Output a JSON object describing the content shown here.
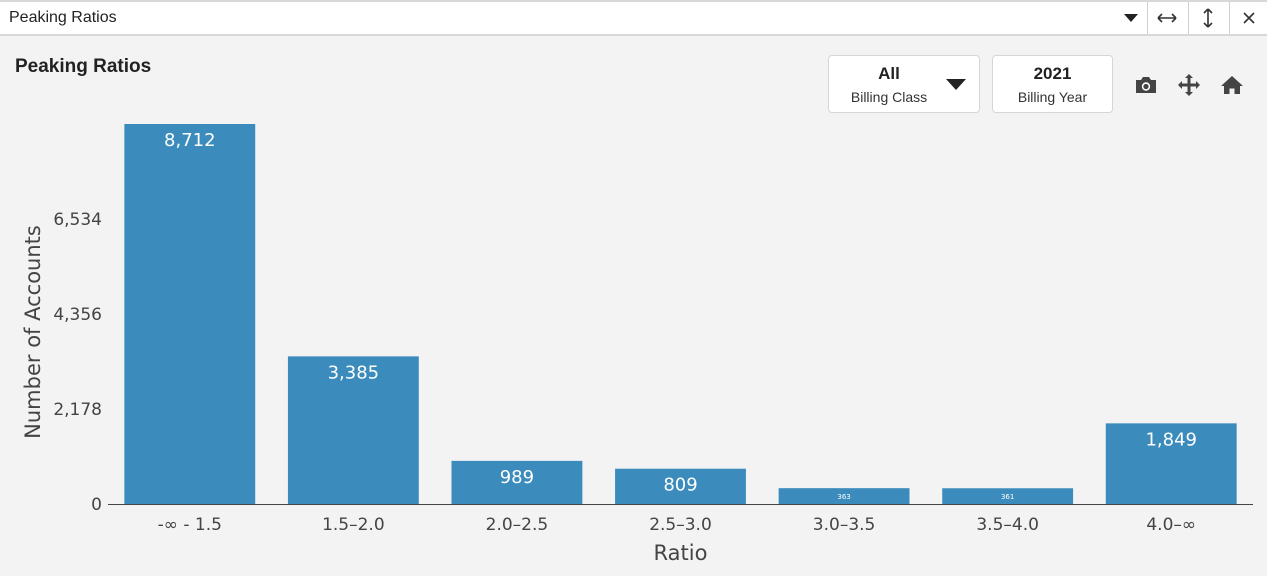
{
  "window": {
    "title": "Peaking Ratios"
  },
  "icons": {
    "dropdown": "caret-down-icon",
    "resize_horizontal": "arrows-horizontal-icon",
    "resize_vertical": "arrows-vertical-icon",
    "close": "close-icon",
    "camera": "camera-icon",
    "move": "move-icon",
    "home": "home-icon"
  },
  "filters": {
    "billing_class": {
      "value": "All",
      "label": "Billing Class"
    },
    "billing_year": {
      "value": "2021",
      "label": "Billing Year"
    }
  },
  "colors": {
    "bar": "#3b8cbd"
  },
  "chart_data": {
    "type": "bar",
    "title": "Peaking Ratios",
    "xlabel": "Ratio",
    "ylabel": "Number of Accounts",
    "categories": [
      "-∞ - 1.5",
      "1.5–2.0",
      "2.0–2.5",
      "2.5–3.0",
      "3.0–3.5",
      "3.5–4.0",
      "4.0–∞"
    ],
    "values": [
      8712,
      3385,
      989,
      809,
      363,
      361,
      1849
    ],
    "value_labels": [
      "8,712",
      "3,385",
      "989",
      "809",
      "363",
      "361",
      "1,849"
    ],
    "yticks": [
      0,
      2178,
      4356,
      6534
    ],
    "ytick_labels": [
      "0",
      "2,178",
      "4,356",
      "6,534"
    ],
    "ylim": [
      0,
      8712
    ],
    "grid": false,
    "legend": "none"
  }
}
